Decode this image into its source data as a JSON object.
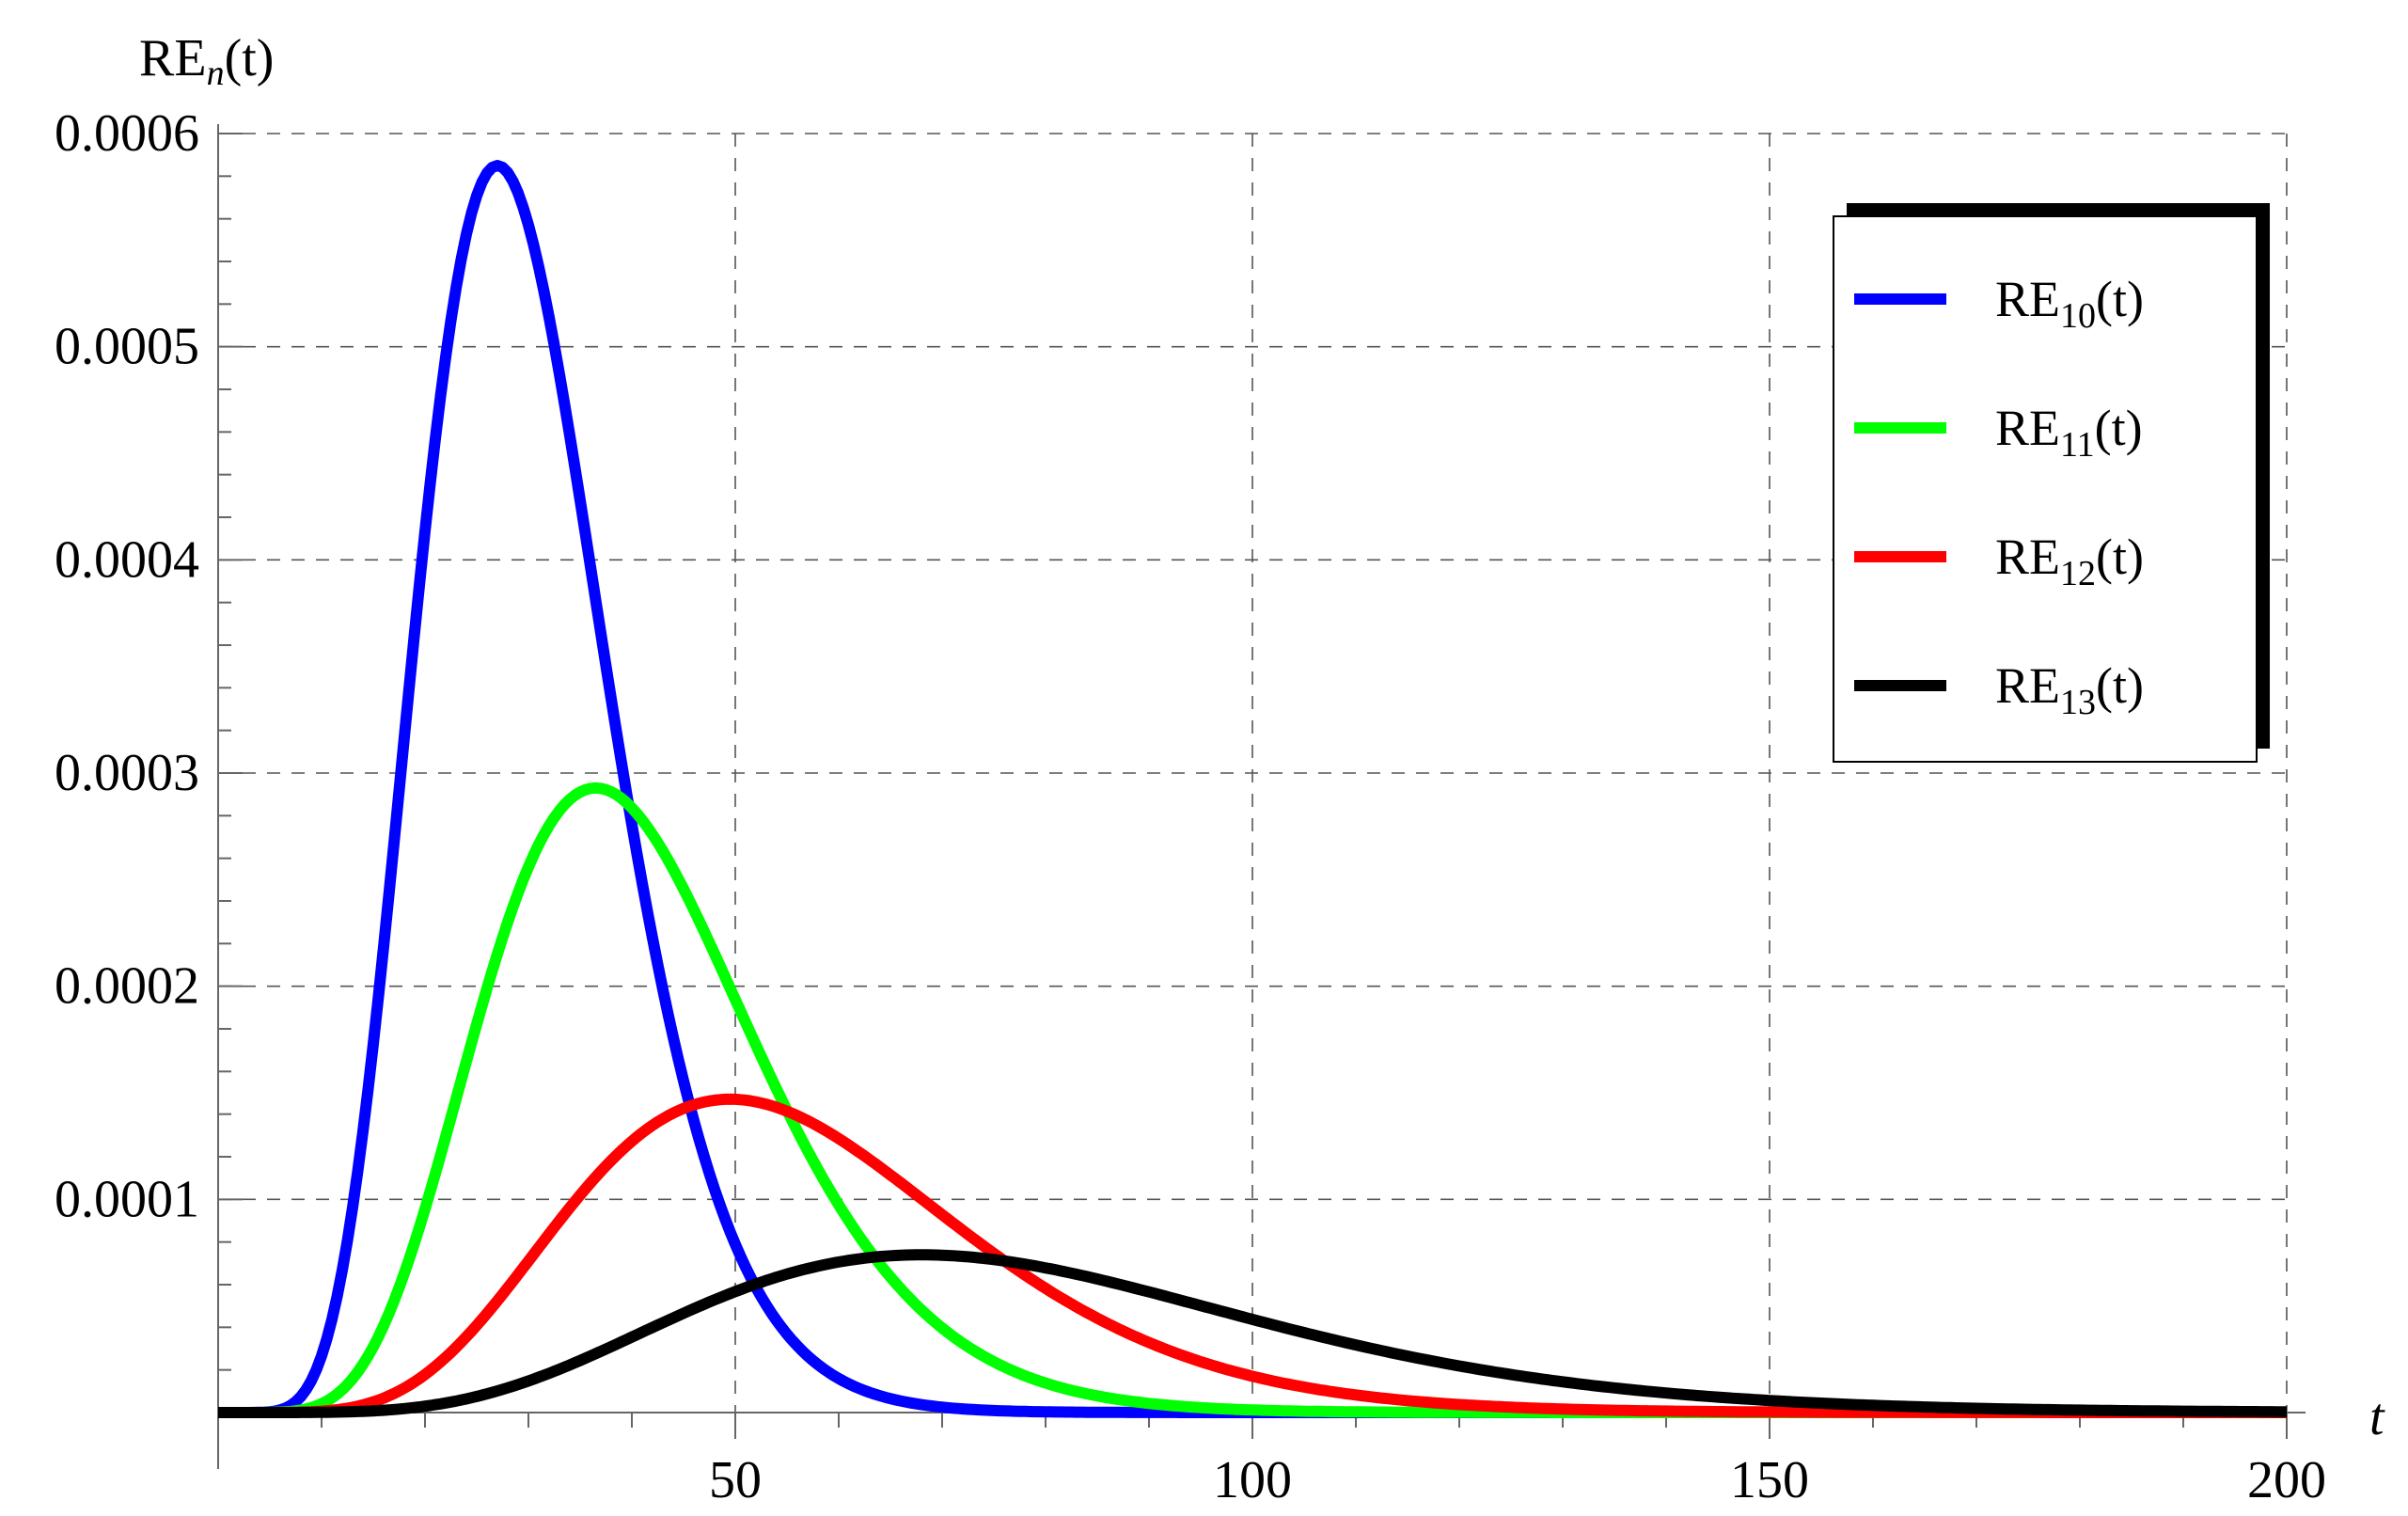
{
  "chart_data": {
    "type": "line",
    "title": "",
    "xlabel": "t",
    "ylabel": {
      "base": "RE",
      "sub": "n",
      "suffix": "(t)"
    },
    "xlim": [
      0,
      200
    ],
    "ylim": [
      0,
      0.0006
    ],
    "x_ticks": [
      50,
      100,
      150,
      200
    ],
    "x_tick_labels": [
      "50",
      "100",
      "150",
      "200"
    ],
    "y_ticks": [
      0.0001,
      0.0002,
      0.0003,
      0.0004,
      0.0005,
      0.0006
    ],
    "y_tick_labels": [
      "0.0001",
      "0.0002",
      "0.0003",
      "0.0004",
      "0.0005",
      "0.0006"
    ],
    "grid": true,
    "legend_position": "top-right",
    "series": [
      {
        "name": "RE10(t)",
        "label_base": "RE",
        "label_sub": "10",
        "label_suffix": "(t)",
        "color": "#0000ff",
        "peak_x": 27,
        "peak_y": 0.000585,
        "shape_k": 8.5
      },
      {
        "name": "RE11(t)",
        "label_base": "RE",
        "label_sub": "11",
        "label_suffix": "(t)",
        "color": "#00ff00",
        "peak_x": 36.5,
        "peak_y": 0.000293,
        "shape_k": 7.5
      },
      {
        "name": "RE12(t)",
        "label_base": "RE",
        "label_sub": "12",
        "label_suffix": "(t)",
        "color": "#ff0000",
        "peak_x": 49.5,
        "peak_y": 0.000147,
        "shape_k": 6.8
      },
      {
        "name": "RE13(t)",
        "label_base": "RE",
        "label_sub": "13",
        "label_suffix": "(t)",
        "color": "#000000",
        "peak_x": 68,
        "peak_y": 7.4e-05,
        "shape_k": 6.2
      }
    ]
  }
}
